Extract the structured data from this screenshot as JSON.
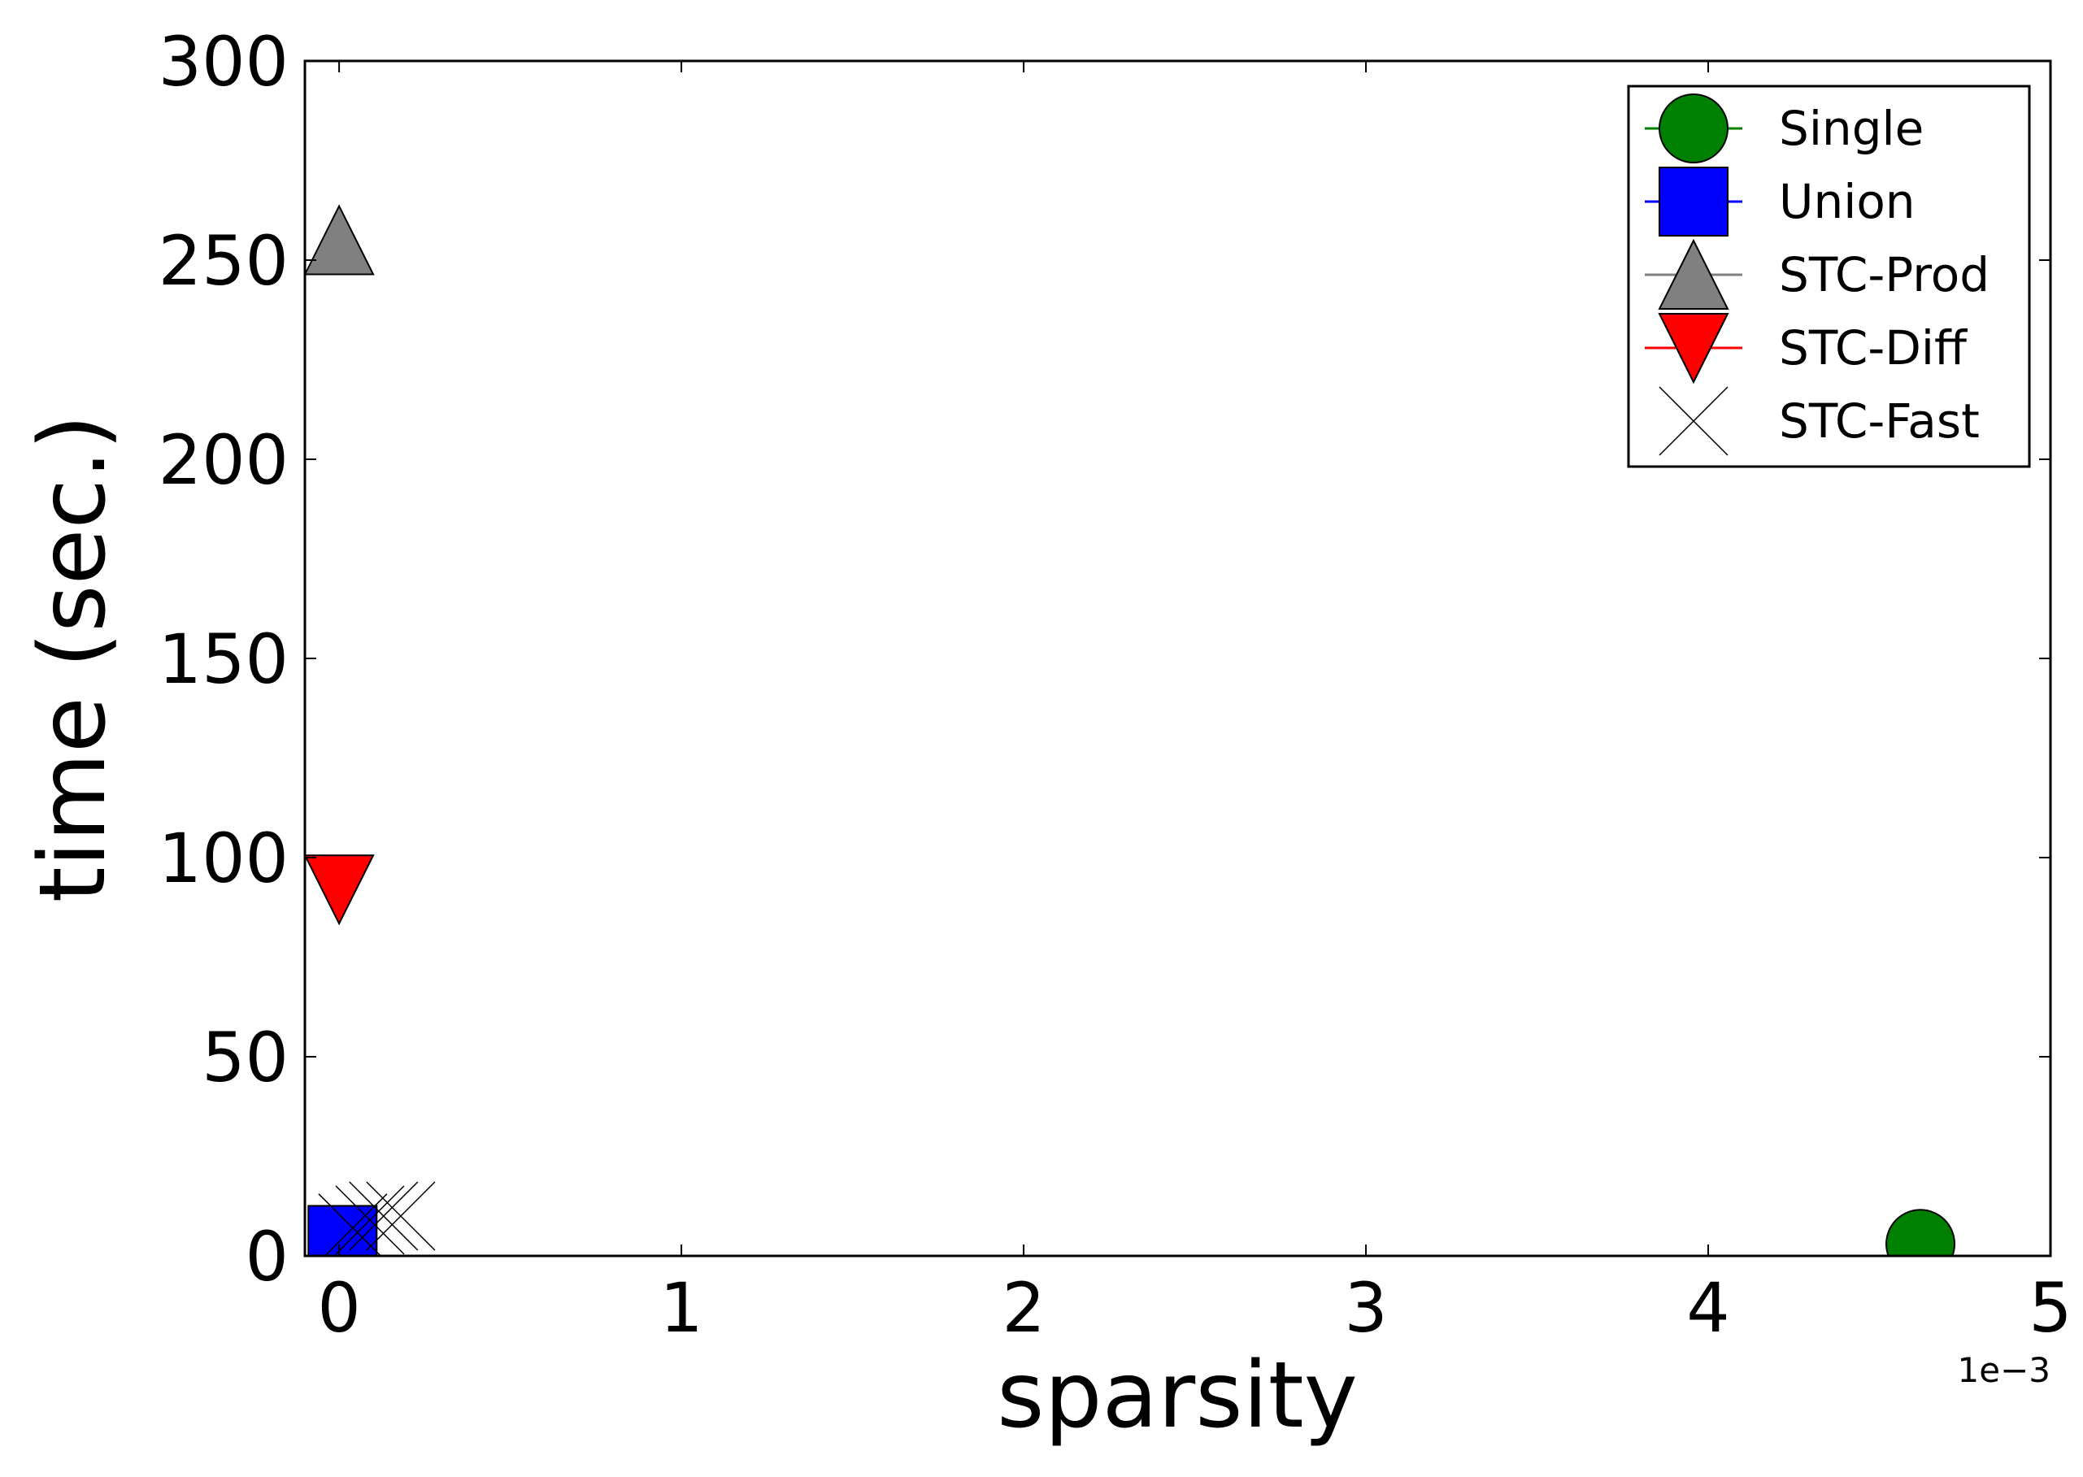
{
  "chart_data": {
    "type": "scatter",
    "xlabel": "sparsity",
    "ylabel": "time (sec.)",
    "x_offset_label": "1e−3",
    "xlim": [
      -0.0001,
      0.005
    ],
    "ylim": [
      0,
      300
    ],
    "x_ticks": [
      {
        "value": 0,
        "label": "0"
      },
      {
        "value": 0.001,
        "label": "1"
      },
      {
        "value": 0.002,
        "label": "2"
      },
      {
        "value": 0.003,
        "label": "3"
      },
      {
        "value": 0.004,
        "label": "4"
      },
      {
        "value": 0.005,
        "label": "5"
      }
    ],
    "y_ticks": [
      {
        "value": 0,
        "label": "0"
      },
      {
        "value": 50,
        "label": "50"
      },
      {
        "value": 100,
        "label": "100"
      },
      {
        "value": 150,
        "label": "150"
      },
      {
        "value": 200,
        "label": "200"
      },
      {
        "value": 250,
        "label": "250"
      },
      {
        "value": 300,
        "label": "300"
      }
    ],
    "grid": false,
    "legend_position": "top-right",
    "series": [
      {
        "name": "Single",
        "marker": "circle",
        "color": "#008000",
        "points": [
          {
            "x": 0.00462,
            "y": 3
          }
        ]
      },
      {
        "name": "Union",
        "marker": "square",
        "color": "#0000ff",
        "points": [
          {
            "x": 1e-05,
            "y": 4
          }
        ]
      },
      {
        "name": "STC-Prod",
        "marker": "triangle-up",
        "color": "#808080",
        "points": [
          {
            "x": 0.0,
            "y": 255
          }
        ]
      },
      {
        "name": "STC-Diff",
        "marker": "triangle-down",
        "color": "#ff0000",
        "points": [
          {
            "x": 0.0,
            "y": 92
          }
        ]
      },
      {
        "name": "STC-Fast",
        "marker": "x",
        "color": "#000000",
        "points": [
          {
            "x": 4e-05,
            "y": 7
          },
          {
            "x": 9e-05,
            "y": 9
          },
          {
            "x": 0.00013,
            "y": 10
          },
          {
            "x": 0.00018,
            "y": 10
          }
        ]
      }
    ]
  }
}
